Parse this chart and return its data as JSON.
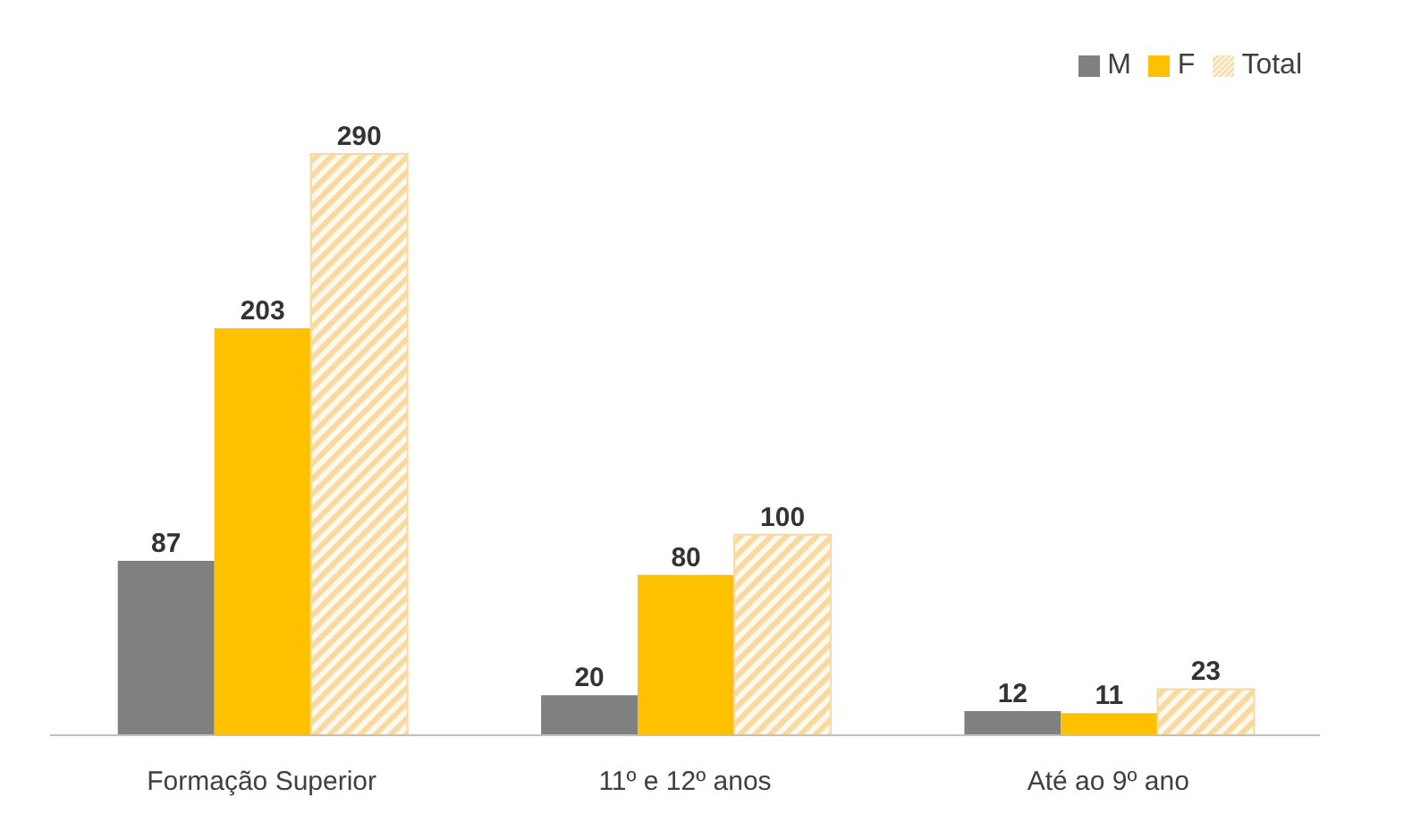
{
  "chart_data": {
    "type": "bar",
    "categories": [
      "Formação Superior",
      "11º e 12º anos",
      "Até ao 9º ano"
    ],
    "series": [
      {
        "name": "M",
        "color": "#808080",
        "values": [
          87,
          20,
          12
        ]
      },
      {
        "name": "F",
        "color": "#ffc000",
        "values": [
          203,
          80,
          11
        ]
      },
      {
        "name": "Total",
        "color": "#f8d9a0",
        "values": [
          290,
          100,
          23
        ]
      }
    ],
    "data_labels": true,
    "legend": "top right",
    "grid": false
  }
}
